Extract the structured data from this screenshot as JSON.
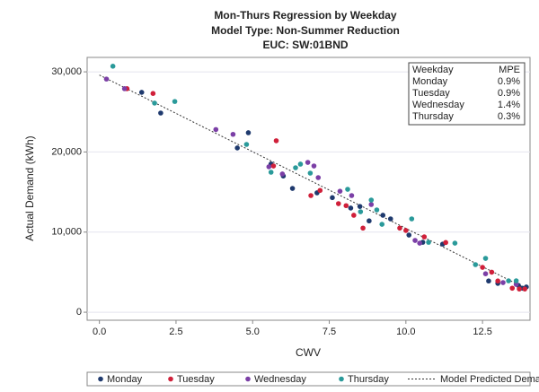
{
  "chart_data": {
    "type": "scatter",
    "title": "Mon-Thurs Regression by Weekday",
    "subtitle": "Model Type: Non-Summer Reduction",
    "subtitle2": "EUC: SW:01BND",
    "x_label": "CWV",
    "y_label": "Actual Demand (kWh)",
    "xlim": [
      -0.4,
      14.05
    ],
    "ylim": [
      -1000,
      31800
    ],
    "xticks": [
      {
        "value": 0,
        "label": "0.0"
      },
      {
        "value": 2.5,
        "label": "2.5"
      },
      {
        "value": 5,
        "label": "5.0"
      },
      {
        "value": 7.5,
        "label": "7.5"
      },
      {
        "value": 10,
        "label": "10.0"
      },
      {
        "value": 12.5,
        "label": "12.5"
      }
    ],
    "yticks": [
      0,
      {
        "value": 10000,
        "label": "10,000"
      },
      {
        "value": 20000,
        "label": "20,000"
      },
      {
        "value": 30000,
        "label": "30,000"
      }
    ],
    "grid": true,
    "series": [
      {
        "name": "Monday",
        "color": "#1f3a6e",
        "x": [
          1.38,
          2.0,
          4.86,
          4.5,
          5.6,
          6.0,
          6.3,
          7.1,
          7.6,
          8.2,
          8.5,
          8.8,
          9.25,
          9.5,
          10.1,
          10.55,
          11.2,
          12.7,
          13.0,
          13.67,
          13.93,
          13.8
        ],
        "values": [
          27440,
          24860,
          22400,
          20500,
          18500,
          17000,
          15450,
          14900,
          14300,
          13000,
          13200,
          11400,
          12100,
          11650,
          9630,
          8730,
          8500,
          3900,
          3600,
          3350,
          3150,
          3000
        ]
      },
      {
        "name": "Tuesday",
        "color": "#d0203a",
        "x": [
          0.9,
          1.75,
          5.77,
          5.68,
          6.9,
          7.2,
          7.8,
          8.05,
          8.3,
          8.6,
          9.8,
          10.0,
          10.6,
          11.3,
          12.5,
          12.8,
          13.47,
          13.7,
          13.88,
          13.0
        ],
        "values": [
          27900,
          27300,
          21400,
          18250,
          14560,
          15200,
          13550,
          13300,
          12100,
          10500,
          10500,
          10200,
          9400,
          8700,
          5600,
          5000,
          3000,
          2900,
          2900,
          3900
        ]
      },
      {
        "name": "Wednesday",
        "color": "#7b3fa6",
        "x": [
          0.23,
          0.82,
          3.8,
          4.36,
          5.53,
          5.97,
          6.8,
          7.0,
          7.14,
          7.85,
          8.23,
          8.87,
          10.3,
          10.45,
          12.6,
          13.17,
          13.6
        ],
        "values": [
          29100,
          27900,
          22800,
          22200,
          18150,
          17250,
          18700,
          18250,
          16800,
          15100,
          14560,
          13440,
          8960,
          8620,
          4800,
          3700,
          3470
        ]
      },
      {
        "name": "Thursday",
        "color": "#2a9a9a",
        "x": [
          0.44,
          1.8,
          2.46,
          4.8,
          5.6,
          6.4,
          6.56,
          6.88,
          8.1,
          8.52,
          8.87,
          9.05,
          9.22,
          10.19,
          10.74,
          11.6,
          12.27,
          12.6,
          13.35,
          13.6
        ],
        "values": [
          30700,
          26100,
          26300,
          20940,
          17470,
          18030,
          18480,
          17360,
          15340,
          12540,
          14000,
          12770,
          10970,
          11650,
          8730,
          8620,
          5940,
          6720,
          3920,
          3920
        ]
      }
    ],
    "line": {
      "name": "Model Predicted Demand",
      "color": "#333333",
      "x": [
        0,
        13.9
      ],
      "values": [
        29600,
        3000
      ]
    },
    "mpe_table": {
      "header": [
        "Weekday",
        "MPE"
      ],
      "rows": [
        [
          "Monday",
          "0.9%"
        ],
        [
          "Tuesday",
          "0.9%"
        ],
        [
          "Wednesday",
          "1.4%"
        ],
        [
          "Thursday",
          "0.3%"
        ]
      ]
    }
  }
}
